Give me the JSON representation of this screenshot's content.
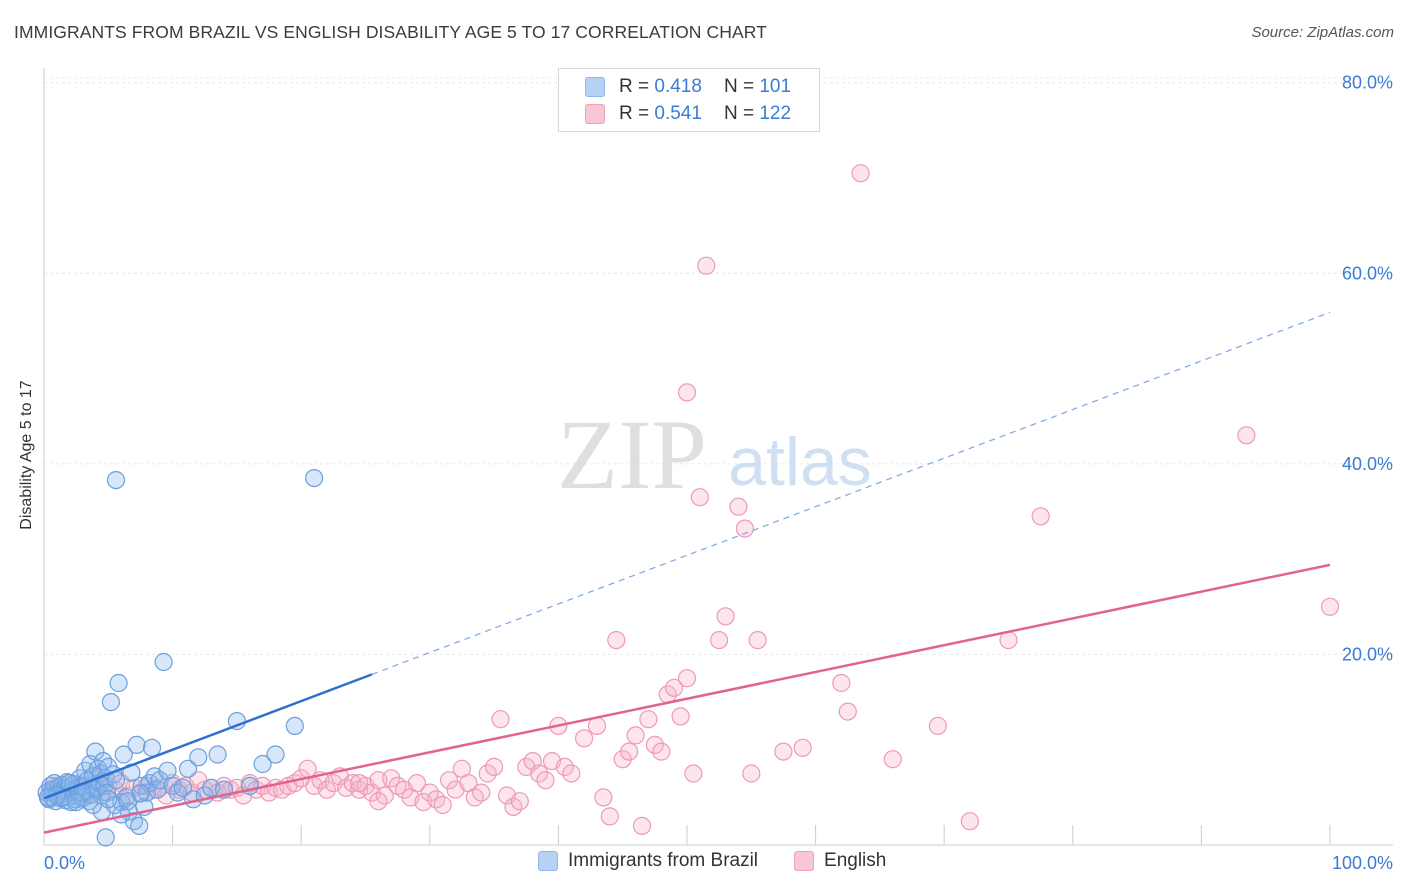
{
  "title": "IMMIGRANTS FROM BRAZIL VS ENGLISH DISABILITY AGE 5 TO 17 CORRELATION CHART",
  "source": "Source: ZipAtlas.com",
  "watermark": {
    "zip": "ZIP",
    "atlas": "atlas"
  },
  "legend": {
    "rows": [
      {
        "r_label": "R =",
        "r_value": "0.418",
        "n_label": "N =",
        "n_value": "101",
        "color": "#8fb8ec",
        "fill": "#b6d1f3"
      },
      {
        "r_label": "R =",
        "r_value": "0.541",
        "n_label": "N =",
        "n_value": "122",
        "color": "#f0a0b8",
        "fill": "#f8c6d4"
      }
    ]
  },
  "bottom_legend": [
    "Immigrants from Brazil",
    "English"
  ],
  "chart_data": {
    "type": "scatter",
    "title": "IMMIGRANTS FROM BRAZIL VS ENGLISH DISABILITY AGE 5 TO 17 CORRELATION CHART",
    "xlabel": "",
    "ylabel": "Disability Age 5 to 17",
    "xlim": [
      0,
      100
    ],
    "ylim": [
      0,
      80
    ],
    "x_tick_labels": [
      "0.0%",
      "100.0%"
    ],
    "y_ticks": [
      20,
      40,
      60,
      80
    ],
    "y_tick_labels": [
      "20.0%",
      "40.0%",
      "60.0%",
      "80.0%"
    ],
    "grid": true,
    "series": [
      {
        "name": "Immigrants from Brazil",
        "color": "#3a7bd5",
        "points": [
          [
            0.2,
            5.5
          ],
          [
            0.4,
            4.8
          ],
          [
            0.5,
            6.2
          ],
          [
            0.6,
            5.0
          ],
          [
            0.7,
            5.8
          ],
          [
            0.8,
            6.5
          ],
          [
            0.9,
            4.6
          ],
          [
            1.0,
            5.3
          ],
          [
            1.1,
            6.0
          ],
          [
            1.2,
            5.6
          ],
          [
            1.3,
            4.9
          ],
          [
            1.4,
            6.3
          ],
          [
            1.5,
            5.1
          ],
          [
            1.6,
            5.9
          ],
          [
            1.7,
            4.7
          ],
          [
            1.8,
            6.6
          ],
          [
            1.9,
            5.4
          ],
          [
            2.0,
            6.1
          ],
          [
            2.1,
            4.5
          ],
          [
            2.2,
            5.7
          ],
          [
            2.3,
            6.4
          ],
          [
            2.4,
            5.2
          ],
          [
            2.5,
            4.8
          ],
          [
            2.6,
            6.0
          ],
          [
            2.7,
            5.5
          ],
          [
            2.8,
            7.0
          ],
          [
            2.9,
            4.9
          ],
          [
            3.0,
            6.2
          ],
          [
            3.1,
            5.0
          ],
          [
            3.2,
            7.8
          ],
          [
            3.3,
            5.6
          ],
          [
            3.4,
            6.8
          ],
          [
            3.5,
            4.6
          ],
          [
            3.6,
            8.5
          ],
          [
            3.7,
            5.3
          ],
          [
            3.8,
            7.2
          ],
          [
            3.9,
            6.0
          ],
          [
            4.0,
            9.8
          ],
          [
            4.1,
            5.8
          ],
          [
            4.2,
            8.0
          ],
          [
            4.3,
            6.5
          ],
          [
            4.4,
            7.5
          ],
          [
            4.5,
            5.2
          ],
          [
            4.6,
            8.8
          ],
          [
            4.7,
            6.2
          ],
          [
            4.8,
            7.0
          ],
          [
            4.9,
            5.5
          ],
          [
            5.0,
            8.2
          ],
          [
            5.2,
            15.0
          ],
          [
            5.4,
            7.4
          ],
          [
            5.6,
            6.8
          ],
          [
            5.8,
            17.0
          ],
          [
            6.0,
            4.5
          ],
          [
            6.2,
            9.5
          ],
          [
            6.4,
            5.0
          ],
          [
            6.6,
            3.5
          ],
          [
            6.8,
            7.6
          ],
          [
            7.0,
            2.5
          ],
          [
            7.2,
            10.5
          ],
          [
            7.4,
            2.0
          ],
          [
            7.6,
            6.2
          ],
          [
            7.8,
            4.0
          ],
          [
            8.0,
            5.5
          ],
          [
            8.2,
            6.5
          ],
          [
            8.4,
            10.2
          ],
          [
            8.6,
            7.2
          ],
          [
            8.8,
            5.8
          ],
          [
            9.0,
            6.8
          ],
          [
            9.3,
            19.2
          ],
          [
            9.6,
            7.8
          ],
          [
            10.0,
            6.2
          ],
          [
            10.4,
            5.5
          ],
          [
            10.8,
            6.0
          ],
          [
            11.2,
            8.0
          ],
          [
            11.6,
            4.8
          ],
          [
            12.0,
            9.2
          ],
          [
            12.5,
            5.2
          ],
          [
            13.0,
            6.0
          ],
          [
            13.5,
            9.5
          ],
          [
            14.0,
            5.8
          ],
          [
            15.0,
            13.0
          ],
          [
            16.0,
            6.2
          ],
          [
            17.0,
            8.5
          ],
          [
            18.0,
            9.5
          ],
          [
            19.5,
            12.5
          ],
          [
            21.0,
            38.5
          ],
          [
            5.6,
            38.3
          ],
          [
            1.5,
            5.0
          ],
          [
            2.0,
            6.5
          ],
          [
            3.0,
            5.5
          ],
          [
            4.5,
            3.5
          ],
          [
            5.5,
            4.2
          ],
          [
            6.0,
            3.2
          ],
          [
            4.8,
            0.8
          ],
          [
            2.5,
            4.5
          ],
          [
            1.0,
            5.2
          ],
          [
            0.3,
            5.0
          ],
          [
            3.8,
            4.2
          ],
          [
            5.0,
            4.8
          ],
          [
            6.5,
            4.6
          ],
          [
            7.5,
            5.4
          ]
        ]
      },
      {
        "name": "English",
        "color": "#e46a92",
        "points": [
          [
            0.5,
            5.8
          ],
          [
            1.0,
            6.2
          ],
          [
            1.5,
            5.5
          ],
          [
            2.0,
            6.5
          ],
          [
            2.5,
            5.8
          ],
          [
            3.0,
            6.0
          ],
          [
            3.5,
            5.2
          ],
          [
            4.0,
            6.8
          ],
          [
            4.5,
            5.5
          ],
          [
            5.0,
            6.2
          ],
          [
            5.5,
            5.8
          ],
          [
            6.0,
            6.5
          ],
          [
            6.5,
            5.2
          ],
          [
            7.0,
            6.0
          ],
          [
            7.5,
            5.5
          ],
          [
            8.0,
            6.2
          ],
          [
            8.5,
            5.8
          ],
          [
            9.0,
            6.0
          ],
          [
            9.5,
            5.2
          ],
          [
            10.0,
            6.5
          ],
          [
            10.5,
            5.8
          ],
          [
            11.0,
            6.2
          ],
          [
            11.5,
            5.5
          ],
          [
            12.0,
            6.8
          ],
          [
            12.5,
            5.8
          ],
          [
            13.0,
            6.0
          ],
          [
            13.5,
            5.5
          ],
          [
            14.0,
            6.2
          ],
          [
            14.5,
            5.8
          ],
          [
            15.0,
            6.0
          ],
          [
            15.5,
            5.2
          ],
          [
            16.0,
            6.5
          ],
          [
            16.5,
            5.8
          ],
          [
            17.0,
            6.2
          ],
          [
            17.5,
            5.5
          ],
          [
            18.0,
            6.0
          ],
          [
            18.5,
            5.8
          ],
          [
            19.0,
            6.2
          ],
          [
            19.5,
            6.5
          ],
          [
            20.0,
            7.0
          ],
          [
            20.5,
            8.0
          ],
          [
            21.0,
            6.2
          ],
          [
            21.5,
            6.8
          ],
          [
            22.0,
            5.8
          ],
          [
            22.5,
            6.5
          ],
          [
            23.0,
            7.2
          ],
          [
            23.5,
            6.0
          ],
          [
            24.0,
            6.5
          ],
          [
            24.5,
            5.8
          ],
          [
            25.0,
            6.2
          ],
          [
            25.5,
            5.5
          ],
          [
            26.0,
            6.8
          ],
          [
            26.5,
            5.2
          ],
          [
            27.0,
            7.0
          ],
          [
            27.5,
            6.2
          ],
          [
            28.0,
            5.8
          ],
          [
            28.5,
            5.0
          ],
          [
            29.0,
            6.5
          ],
          [
            29.5,
            4.5
          ],
          [
            30.0,
            5.5
          ],
          [
            30.5,
            4.8
          ],
          [
            31.0,
            4.2
          ],
          [
            31.5,
            6.8
          ],
          [
            32.0,
            5.8
          ],
          [
            32.5,
            8.0
          ],
          [
            33.0,
            6.5
          ],
          [
            33.5,
            5.0
          ],
          [
            34.0,
            5.5
          ],
          [
            34.5,
            7.5
          ],
          [
            35.0,
            8.2
          ],
          [
            35.5,
            13.2
          ],
          [
            36.0,
            5.2
          ],
          [
            36.5,
            4.0
          ],
          [
            37.0,
            4.6
          ],
          [
            37.5,
            8.2
          ],
          [
            38.0,
            8.8
          ],
          [
            38.5,
            7.5
          ],
          [
            39.0,
            6.8
          ],
          [
            39.5,
            8.8
          ],
          [
            40.0,
            12.5
          ],
          [
            40.5,
            8.2
          ],
          [
            41.0,
            7.5
          ],
          [
            42.0,
            11.2
          ],
          [
            43.0,
            12.5
          ],
          [
            43.5,
            5.0
          ],
          [
            44.0,
            3.0
          ],
          [
            44.5,
            21.5
          ],
          [
            45.0,
            9.0
          ],
          [
            45.5,
            9.8
          ],
          [
            46.0,
            11.5
          ],
          [
            46.5,
            2.0
          ],
          [
            47.0,
            13.2
          ],
          [
            47.5,
            10.5
          ],
          [
            48.0,
            9.8
          ],
          [
            48.5,
            15.8
          ],
          [
            49.0,
            16.5
          ],
          [
            49.5,
            13.5
          ],
          [
            50.0,
            17.5
          ],
          [
            50.5,
            7.5
          ],
          [
            51.0,
            36.5
          ],
          [
            51.5,
            60.8
          ],
          [
            50.0,
            47.5
          ],
          [
            52.5,
            21.5
          ],
          [
            53.0,
            24.0
          ],
          [
            54.0,
            35.5
          ],
          [
            54.5,
            33.2
          ],
          [
            55.0,
            7.5
          ],
          [
            55.5,
            21.5
          ],
          [
            57.5,
            9.8
          ],
          [
            59.0,
            10.2
          ],
          [
            62.0,
            17.0
          ],
          [
            62.5,
            14.0
          ],
          [
            63.5,
            70.5
          ],
          [
            66.0,
            9.0
          ],
          [
            69.5,
            12.5
          ],
          [
            72.0,
            2.5
          ],
          [
            75.0,
            21.5
          ],
          [
            77.5,
            34.5
          ],
          [
            93.5,
            43.0
          ],
          [
            100.0,
            25.0
          ],
          [
            24.5,
            6.5
          ],
          [
            26.0,
            4.6
          ]
        ]
      }
    ],
    "trendlines": [
      {
        "series": "Immigrants from Brazil",
        "x_solid": [
          0,
          25.5
        ],
        "x_dashed": [
          25.5,
          100
        ],
        "intercept": 4.9,
        "slope": 0.51
      },
      {
        "series": "English",
        "x": [
          0,
          100
        ],
        "intercept": 1.3,
        "slope": 0.281
      }
    ]
  }
}
